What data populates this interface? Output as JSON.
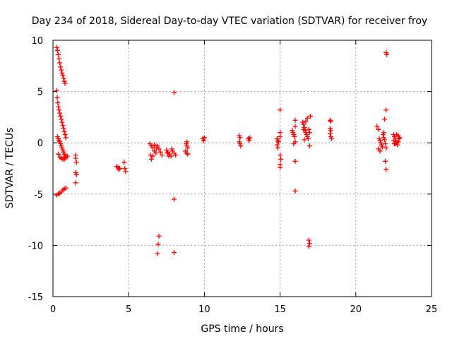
{
  "chart_data": {
    "type": "scatter",
    "title": "Day 234 of 2018, Sidereal Day-to-day VTEC variation (SDTVAR) for receiver froy",
    "xlabel": "GPS time / hours",
    "ylabel": "SDTVAR / TECUs",
    "xlim": [
      0,
      25
    ],
    "ylim": [
      -15,
      10
    ],
    "xticks": [
      0,
      5,
      10,
      15,
      20,
      25
    ],
    "yticks": [
      -15,
      -10,
      -5,
      0,
      5,
      10
    ],
    "grid": true,
    "marker": "plus",
    "marker_color": "#ff0000",
    "series": [
      {
        "name": "SDTVAR",
        "points": [
          [
            0.25,
            9.3
          ],
          [
            0.3,
            9.0
          ],
          [
            0.35,
            8.6
          ],
          [
            0.4,
            8.2
          ],
          [
            0.45,
            7.8
          ],
          [
            0.5,
            7.4
          ],
          [
            0.55,
            7.1
          ],
          [
            0.6,
            6.8
          ],
          [
            0.65,
            6.6
          ],
          [
            0.7,
            6.3
          ],
          [
            0.75,
            6.0
          ],
          [
            0.8,
            5.8
          ],
          [
            0.25,
            5.1
          ],
          [
            0.28,
            4.4
          ],
          [
            0.32,
            3.9
          ],
          [
            0.36,
            3.5
          ],
          [
            0.4,
            3.2
          ],
          [
            0.45,
            2.9
          ],
          [
            0.5,
            2.6
          ],
          [
            0.55,
            2.3
          ],
          [
            0.6,
            2.0
          ],
          [
            0.65,
            1.7
          ],
          [
            0.7,
            1.4
          ],
          [
            0.75,
            1.1
          ],
          [
            0.8,
            0.8
          ],
          [
            0.85,
            0.5
          ],
          [
            0.3,
            0.6
          ],
          [
            0.35,
            0.4
          ],
          [
            0.4,
            0.2
          ],
          [
            0.45,
            0.1
          ],
          [
            0.5,
            -0.1
          ],
          [
            0.55,
            -0.3
          ],
          [
            0.6,
            -0.5
          ],
          [
            0.65,
            -0.7
          ],
          [
            0.7,
            -0.9
          ],
          [
            0.75,
            -1.1
          ],
          [
            0.8,
            -1.3
          ],
          [
            0.85,
            -1.4
          ],
          [
            0.35,
            -1.1
          ],
          [
            0.45,
            -1.4
          ],
          [
            0.55,
            -1.5
          ],
          [
            0.65,
            -1.6
          ],
          [
            0.75,
            -1.6
          ],
          [
            0.85,
            -1.5
          ],
          [
            0.95,
            -1.3
          ],
          [
            0.25,
            -5.1
          ],
          [
            0.35,
            -5.0
          ],
          [
            0.45,
            -4.9
          ],
          [
            0.55,
            -4.8
          ],
          [
            0.65,
            -4.6
          ],
          [
            0.75,
            -4.5
          ],
          [
            0.85,
            -4.4
          ],
          [
            1.5,
            -1.2
          ],
          [
            1.5,
            -1.5
          ],
          [
            1.55,
            -1.9
          ],
          [
            1.5,
            -2.9
          ],
          [
            1.55,
            -3.1
          ],
          [
            1.5,
            -3.9
          ],
          [
            4.2,
            -2.3
          ],
          [
            4.3,
            -2.4
          ],
          [
            4.4,
            -2.5
          ],
          [
            4.35,
            -2.6
          ],
          [
            4.7,
            -1.9
          ],
          [
            4.75,
            -2.5
          ],
          [
            4.8,
            -2.8
          ],
          [
            6.4,
            -0.1
          ],
          [
            6.5,
            -0.3
          ],
          [
            6.6,
            -0.5
          ],
          [
            6.7,
            -0.8
          ],
          [
            6.8,
            -1.0
          ],
          [
            6.45,
            -1.2
          ],
          [
            6.5,
            -1.6
          ],
          [
            6.6,
            -1.3
          ],
          [
            6.9,
            -0.3
          ],
          [
            7.0,
            -0.6
          ],
          [
            7.1,
            -0.9
          ],
          [
            7.2,
            -1.2
          ],
          [
            6.7,
            -0.2
          ],
          [
            6.85,
            -0.5
          ],
          [
            7.0,
            -9.1
          ],
          [
            6.95,
            -9.9
          ],
          [
            6.9,
            -10.8
          ],
          [
            7.5,
            -0.7
          ],
          [
            7.6,
            -0.9
          ],
          [
            7.7,
            -1.1
          ],
          [
            7.8,
            -1.3
          ],
          [
            7.9,
            -0.8
          ],
          [
            8.0,
            -1.0
          ],
          [
            8.1,
            -1.2
          ],
          [
            7.55,
            -1.0
          ],
          [
            7.65,
            -1.3
          ],
          [
            7.85,
            -0.6
          ],
          [
            8.0,
            4.9
          ],
          [
            8.0,
            -5.5
          ],
          [
            8.0,
            -10.7
          ],
          [
            8.8,
            -0.1
          ],
          [
            8.85,
            -0.3
          ],
          [
            8.9,
            -0.5
          ],
          [
            8.75,
            -0.8
          ],
          [
            8.8,
            -1.0
          ],
          [
            8.9,
            -1.1
          ],
          [
            8.85,
            0.1
          ],
          [
            9.9,
            0.4
          ],
          [
            9.95,
            0.2
          ],
          [
            10.0,
            0.5
          ],
          [
            12.3,
            0.7
          ],
          [
            12.35,
            0.5
          ],
          [
            12.3,
            0.1
          ],
          [
            12.35,
            -0.1
          ],
          [
            12.4,
            -0.3
          ],
          [
            12.9,
            0.4
          ],
          [
            12.95,
            0.2
          ],
          [
            13.0,
            0.5
          ],
          [
            14.8,
            0.4
          ],
          [
            14.85,
            0.2
          ],
          [
            14.9,
            0.1
          ],
          [
            14.8,
            -0.2
          ],
          [
            14.85,
            -0.5
          ],
          [
            15.0,
            3.2
          ],
          [
            15.0,
            1.0
          ],
          [
            15.0,
            0.6
          ],
          [
            15.0,
            -1.2
          ],
          [
            15.05,
            -1.6
          ],
          [
            15.0,
            -2.1
          ],
          [
            15.0,
            -2.4
          ],
          [
            15.8,
            1.2
          ],
          [
            15.85,
            1.0
          ],
          [
            15.9,
            0.8
          ],
          [
            15.95,
            0.6
          ],
          [
            16.0,
            2.2
          ],
          [
            16.0,
            1.6
          ],
          [
            16.0,
            0.1
          ],
          [
            15.9,
            -0.1
          ],
          [
            16.0,
            -1.8
          ],
          [
            16.0,
            -4.7
          ],
          [
            16.5,
            2.0
          ],
          [
            16.55,
            1.8
          ],
          [
            16.6,
            1.5
          ],
          [
            16.65,
            1.2
          ],
          [
            16.7,
            1.0
          ],
          [
            16.75,
            0.8
          ],
          [
            16.8,
            0.6
          ],
          [
            16.85,
            0.4
          ],
          [
            16.6,
            0.3
          ],
          [
            16.7,
            2.1
          ],
          [
            16.8,
            2.4
          ],
          [
            16.9,
            1.3
          ],
          [
            16.95,
            1.0
          ],
          [
            17.0,
            2.6
          ],
          [
            16.55,
            1.3
          ],
          [
            16.95,
            -0.3
          ],
          [
            16.9,
            -9.5
          ],
          [
            16.95,
            -9.8
          ],
          [
            16.9,
            -10.1
          ],
          [
            18.3,
            2.2
          ],
          [
            18.35,
            2.1
          ],
          [
            18.3,
            1.4
          ],
          [
            18.35,
            1.2
          ],
          [
            18.3,
            0.9
          ],
          [
            18.35,
            0.6
          ],
          [
            18.4,
            0.4
          ],
          [
            21.4,
            1.6
          ],
          [
            21.5,
            1.3
          ],
          [
            21.55,
            0.4
          ],
          [
            21.6,
            0.2
          ],
          [
            21.65,
            0.0
          ],
          [
            21.7,
            -0.2
          ],
          [
            21.75,
            -0.4
          ],
          [
            21.5,
            -0.6
          ],
          [
            21.6,
            -0.8
          ],
          [
            21.8,
            0.8
          ],
          [
            21.85,
            0.5
          ],
          [
            21.9,
            0.3
          ],
          [
            21.95,
            -0.1
          ],
          [
            22.0,
            -0.5
          ],
          [
            21.85,
            1.0
          ],
          [
            21.9,
            2.3
          ],
          [
            22.0,
            3.2
          ],
          [
            21.95,
            -1.8
          ],
          [
            22.0,
            -2.6
          ],
          [
            22.0,
            8.8
          ],
          [
            22.05,
            8.6
          ],
          [
            22.5,
            0.8
          ],
          [
            22.55,
            0.6
          ],
          [
            22.6,
            0.4
          ],
          [
            22.65,
            0.2
          ],
          [
            22.7,
            0.0
          ],
          [
            22.75,
            -0.2
          ],
          [
            22.5,
            0.2
          ],
          [
            22.6,
            -0.1
          ],
          [
            22.8,
            0.7
          ],
          [
            22.85,
            0.4
          ],
          [
            22.9,
            0.5
          ],
          [
            22.7,
            0.8
          ],
          [
            22.55,
            -0.1
          ],
          [
            22.8,
            0.1
          ]
        ]
      }
    ]
  }
}
